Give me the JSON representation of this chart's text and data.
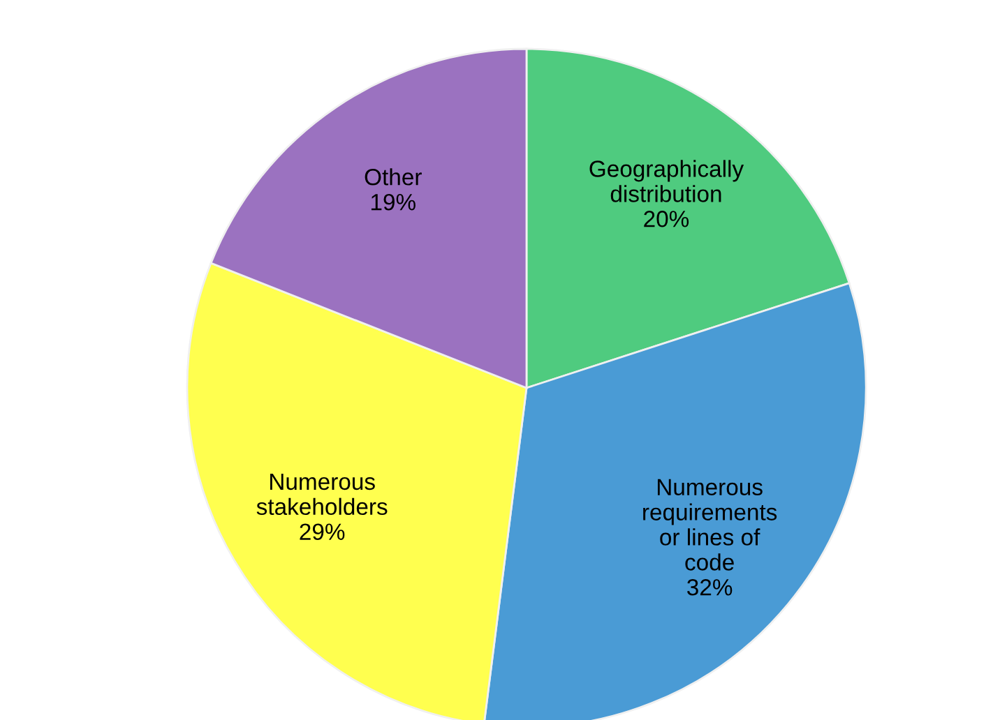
{
  "chart_data": {
    "type": "pie",
    "categories": [
      "Geographically\ndistribution",
      "Numerous\nrequirements\nor lines of\ncode",
      "Numerous\nstakeholders",
      "Other"
    ],
    "values": [
      20,
      32,
      29,
      19
    ],
    "value_labels": [
      "20%",
      "32%",
      "29%",
      "19%"
    ],
    "colors": [
      "#4fcb7f",
      "#4a9bd5",
      "#ffff4f",
      "#9b72c0"
    ]
  }
}
